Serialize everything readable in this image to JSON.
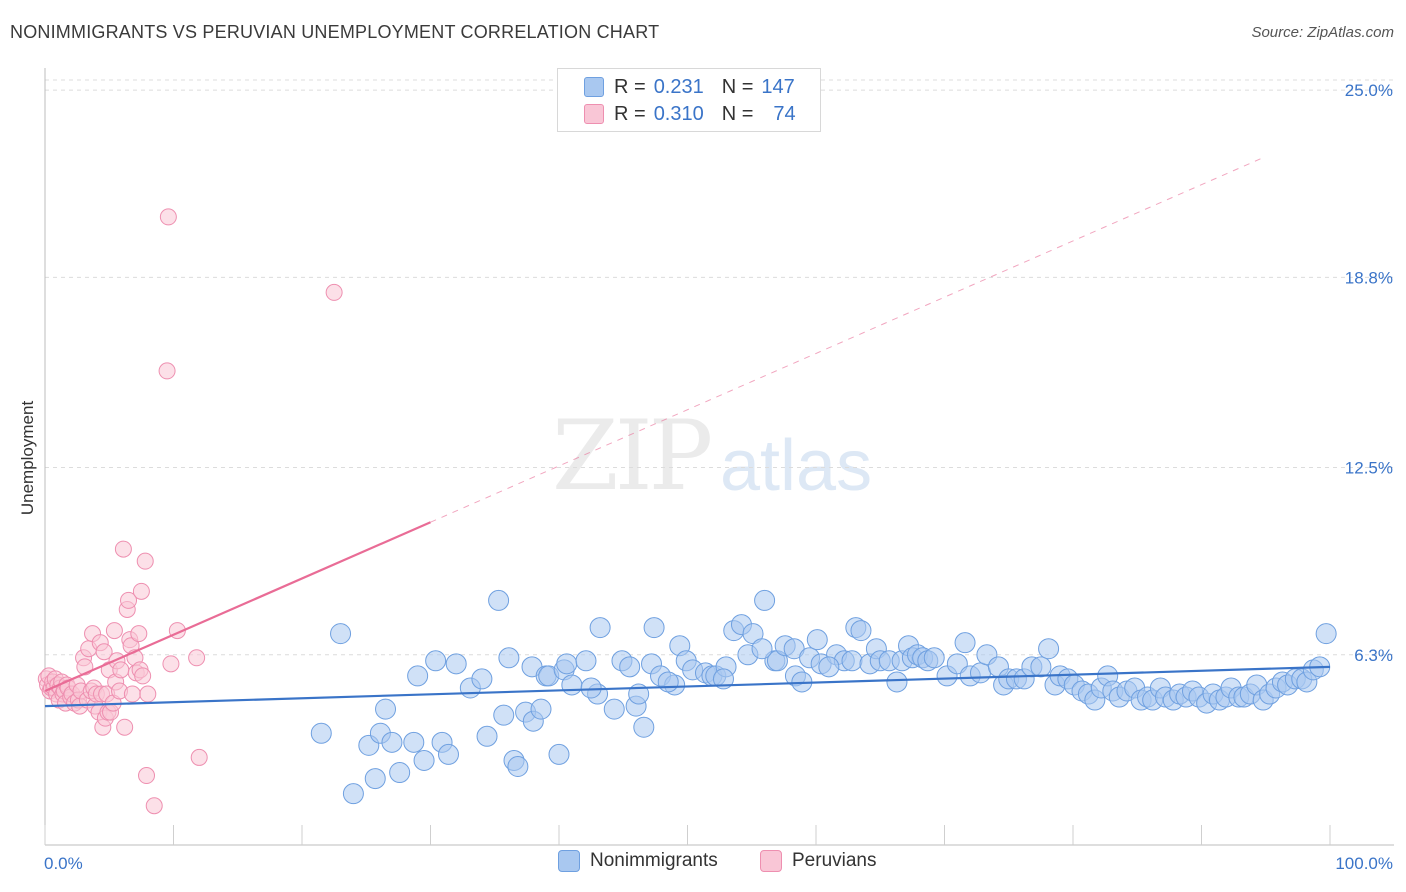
{
  "title": "NONIMMIGRANTS VS PERUVIAN UNEMPLOYMENT CORRELATION CHART",
  "source": "Source: ZipAtlas.com",
  "watermark": {
    "zip": "ZIP",
    "atlas": "atlas"
  },
  "legend": {
    "rows": [
      {
        "r_label": "R =",
        "r_value": "0.231",
        "n_label": "N =",
        "n_value": "147",
        "color": "#a9c8f0",
        "border": "#6fa0e0"
      },
      {
        "r_label": "R =",
        "r_value": "0.310",
        "n_label": "N =",
        "n_value": "74",
        "color": "#f9c6d6",
        "border": "#ee8fb0"
      }
    ]
  },
  "bottom_legend": [
    {
      "label": "Nonimmigrants",
      "color": "#a9c8f0",
      "border": "#6fa0e0"
    },
    {
      "label": "Peruvians",
      "color": "#f9c6d6",
      "border": "#ee8fb0"
    }
  ],
  "chart_data": {
    "type": "scatter",
    "xlabel": "",
    "ylabel": "Unemployment",
    "xlim": [
      0,
      100
    ],
    "ylim": [
      0,
      25.5
    ],
    "x_tick_labels": [
      "0.0%",
      "100.0%"
    ],
    "y_ticks": [
      6.3,
      12.5,
      18.8,
      25.0
    ],
    "y_tick_labels": [
      "6.3%",
      "12.5%",
      "18.8%",
      "25.0%"
    ],
    "grid": "horizontal dashed",
    "legend_position": "top-center",
    "colors": {
      "blue": "#3a74c8",
      "pink": "#e96c96",
      "blue_fill": "#a9c8f0",
      "pink_fill": "#f9c6d6"
    },
    "series": [
      {
        "name": "Nonimmigrants",
        "color": "#3a74c8",
        "trend": {
          "x0": 0,
          "y0": 4.6,
          "x1": 100,
          "y1": 5.9,
          "solid_to": 100
        },
        "points": [
          [
            21.5,
            3.7
          ],
          [
            24.0,
            1.7
          ],
          [
            25.2,
            3.3
          ],
          [
            25.7,
            2.2
          ],
          [
            26.1,
            3.7
          ],
          [
            26.5,
            4.5
          ],
          [
            27.0,
            3.4
          ],
          [
            27.6,
            2.4
          ],
          [
            28.7,
            3.4
          ],
          [
            29.0,
            5.6
          ],
          [
            29.5,
            2.8
          ],
          [
            30.4,
            6.1
          ],
          [
            30.9,
            3.4
          ],
          [
            31.4,
            3.0
          ],
          [
            33.1,
            5.2
          ],
          [
            34.4,
            3.6
          ],
          [
            35.3,
            8.1
          ],
          [
            35.7,
            4.3
          ],
          [
            36.1,
            6.2
          ],
          [
            36.5,
            2.8
          ],
          [
            36.8,
            2.6
          ],
          [
            37.4,
            4.4
          ],
          [
            37.9,
            5.9
          ],
          [
            38.0,
            4.1
          ],
          [
            38.6,
            4.5
          ],
          [
            39.0,
            5.6
          ],
          [
            39.2,
            5.6
          ],
          [
            40.0,
            3.0
          ],
          [
            40.4,
            5.8
          ],
          [
            40.6,
            6.0
          ],
          [
            41.0,
            5.3
          ],
          [
            42.1,
            6.1
          ],
          [
            43.0,
            5.0
          ],
          [
            43.2,
            7.2
          ],
          [
            44.3,
            4.5
          ],
          [
            44.9,
            6.1
          ],
          [
            45.5,
            5.9
          ],
          [
            46.0,
            4.6
          ],
          [
            46.2,
            5.0
          ],
          [
            46.6,
            3.9
          ],
          [
            47.2,
            6.0
          ],
          [
            47.4,
            7.2
          ],
          [
            47.9,
            5.6
          ],
          [
            49.0,
            5.3
          ],
          [
            49.4,
            6.6
          ],
          [
            49.9,
            6.1
          ],
          [
            50.4,
            5.8
          ],
          [
            51.4,
            5.7
          ],
          [
            51.9,
            5.6
          ],
          [
            52.2,
            5.6
          ],
          [
            53.0,
            5.9
          ],
          [
            53.6,
            7.1
          ],
          [
            54.2,
            7.3
          ],
          [
            54.7,
            6.3
          ],
          [
            55.1,
            7.0
          ],
          [
            56.0,
            8.1
          ],
          [
            56.8,
            6.1
          ],
          [
            57.0,
            6.1
          ],
          [
            57.6,
            6.6
          ],
          [
            58.3,
            6.5
          ],
          [
            58.4,
            5.6
          ],
          [
            58.9,
            5.4
          ],
          [
            59.5,
            6.2
          ],
          [
            60.1,
            6.8
          ],
          [
            60.4,
            6.0
          ],
          [
            61.6,
            6.3
          ],
          [
            62.2,
            6.1
          ],
          [
            62.8,
            6.1
          ],
          [
            63.1,
            7.2
          ],
          [
            63.5,
            7.1
          ],
          [
            64.2,
            6.0
          ],
          [
            64.7,
            6.5
          ],
          [
            65.0,
            6.1
          ],
          [
            65.7,
            6.1
          ],
          [
            66.3,
            5.4
          ],
          [
            66.7,
            6.1
          ],
          [
            67.2,
            6.6
          ],
          [
            67.5,
            6.2
          ],
          [
            67.9,
            6.3
          ],
          [
            68.3,
            6.2
          ],
          [
            68.7,
            6.1
          ],
          [
            69.2,
            6.2
          ],
          [
            70.2,
            5.6
          ],
          [
            71.0,
            6.0
          ],
          [
            71.6,
            6.7
          ],
          [
            72.0,
            5.6
          ],
          [
            72.8,
            5.7
          ],
          [
            73.3,
            6.3
          ],
          [
            74.2,
            5.9
          ],
          [
            74.6,
            5.3
          ],
          [
            75.0,
            5.5
          ],
          [
            75.6,
            5.5
          ],
          [
            76.2,
            5.5
          ],
          [
            76.8,
            5.9
          ],
          [
            77.5,
            5.9
          ],
          [
            78.1,
            6.5
          ],
          [
            78.6,
            5.3
          ],
          [
            79.0,
            5.6
          ],
          [
            79.6,
            5.5
          ],
          [
            80.1,
            5.3
          ],
          [
            80.7,
            5.1
          ],
          [
            81.2,
            5.0
          ],
          [
            81.7,
            4.8
          ],
          [
            82.2,
            5.2
          ],
          [
            82.7,
            5.6
          ],
          [
            83.1,
            5.1
          ],
          [
            83.6,
            4.9
          ],
          [
            84.2,
            5.1
          ],
          [
            84.8,
            5.2
          ],
          [
            85.3,
            4.8
          ],
          [
            85.8,
            4.9
          ],
          [
            86.2,
            4.8
          ],
          [
            86.8,
            5.2
          ],
          [
            87.2,
            4.9
          ],
          [
            87.8,
            4.8
          ],
          [
            88.3,
            5.0
          ],
          [
            88.8,
            4.9
          ],
          [
            89.3,
            5.1
          ],
          [
            89.8,
            4.9
          ],
          [
            90.4,
            4.7
          ],
          [
            90.9,
            5.0
          ],
          [
            91.4,
            4.8
          ],
          [
            91.9,
            4.9
          ],
          [
            92.3,
            5.2
          ],
          [
            92.9,
            4.9
          ],
          [
            93.3,
            4.9
          ],
          [
            93.8,
            5.0
          ],
          [
            94.3,
            5.3
          ],
          [
            94.8,
            4.8
          ],
          [
            95.3,
            5.0
          ],
          [
            95.8,
            5.2
          ],
          [
            96.3,
            5.4
          ],
          [
            96.7,
            5.3
          ],
          [
            97.3,
            5.5
          ],
          [
            97.8,
            5.5
          ],
          [
            98.2,
            5.4
          ],
          [
            98.7,
            5.8
          ],
          [
            99.2,
            5.9
          ],
          [
            99.7,
            7.0
          ],
          [
            23.0,
            7.0
          ],
          [
            32.0,
            6.0
          ],
          [
            34.0,
            5.5
          ],
          [
            42.5,
            5.2
          ],
          [
            48.5,
            5.4
          ],
          [
            52.8,
            5.5
          ],
          [
            55.8,
            6.5
          ],
          [
            61.0,
            5.9
          ]
        ]
      },
      {
        "name": "Peruvians",
        "color": "#e96c96",
        "trend": {
          "x0": 0,
          "y0": 5.1,
          "x1": 95,
          "y1": 22.8,
          "solid_to": 30
        },
        "points": [
          [
            0.1,
            5.5
          ],
          [
            0.2,
            5.3
          ],
          [
            0.3,
            5.6
          ],
          [
            0.4,
            5.1
          ],
          [
            0.5,
            5.2
          ],
          [
            0.6,
            5.4
          ],
          [
            0.7,
            5.2
          ],
          [
            0.8,
            5.5
          ],
          [
            0.9,
            5.0
          ],
          [
            1.0,
            5.3
          ],
          [
            1.1,
            4.8
          ],
          [
            1.2,
            5.2
          ],
          [
            1.3,
            5.4
          ],
          [
            1.4,
            5.0
          ],
          [
            1.5,
            5.1
          ],
          [
            1.6,
            4.7
          ],
          [
            1.7,
            5.3
          ],
          [
            1.8,
            5.2
          ],
          [
            2.0,
            4.9
          ],
          [
            2.1,
            5.0
          ],
          [
            2.3,
            4.7
          ],
          [
            2.5,
            5.3
          ],
          [
            2.6,
            4.8
          ],
          [
            2.7,
            4.6
          ],
          [
            2.8,
            5.1
          ],
          [
            3.0,
            6.2
          ],
          [
            3.1,
            5.9
          ],
          [
            3.3,
            4.8
          ],
          [
            3.4,
            6.5
          ],
          [
            3.6,
            5.1
          ],
          [
            3.7,
            7.0
          ],
          [
            3.8,
            5.2
          ],
          [
            3.9,
            4.6
          ],
          [
            4.0,
            5.0
          ],
          [
            4.2,
            4.4
          ],
          [
            4.3,
            6.7
          ],
          [
            4.4,
            5.0
          ],
          [
            4.5,
            3.9
          ],
          [
            4.6,
            6.4
          ],
          [
            4.7,
            4.2
          ],
          [
            4.8,
            5.0
          ],
          [
            4.9,
            4.4
          ],
          [
            5.0,
            5.8
          ],
          [
            5.1,
            4.4
          ],
          [
            5.3,
            4.7
          ],
          [
            5.4,
            7.1
          ],
          [
            5.5,
            5.4
          ],
          [
            5.6,
            6.1
          ],
          [
            5.8,
            5.1
          ],
          [
            5.9,
            5.8
          ],
          [
            6.1,
            9.8
          ],
          [
            6.2,
            3.9
          ],
          [
            6.4,
            7.8
          ],
          [
            6.5,
            8.1
          ],
          [
            6.6,
            6.8
          ],
          [
            6.7,
            6.6
          ],
          [
            6.8,
            5.0
          ],
          [
            7.0,
            6.2
          ],
          [
            7.1,
            5.7
          ],
          [
            7.3,
            7.0
          ],
          [
            7.4,
            5.8
          ],
          [
            7.5,
            8.4
          ],
          [
            7.6,
            5.6
          ],
          [
            7.8,
            9.4
          ],
          [
            7.9,
            2.3
          ],
          [
            8.0,
            5.0
          ],
          [
            8.5,
            1.3
          ],
          [
            9.6,
            20.8
          ],
          [
            9.8,
            6.0
          ],
          [
            12.0,
            2.9
          ],
          [
            10.3,
            7.1
          ],
          [
            11.8,
            6.2
          ],
          [
            9.5,
            15.7
          ],
          [
            22.5,
            18.3
          ]
        ]
      }
    ]
  }
}
